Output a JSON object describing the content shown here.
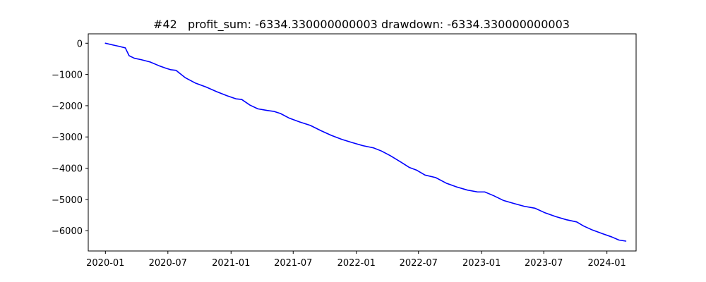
{
  "chart_data": {
    "type": "line",
    "title": "#42   profit_sum: -6334.330000000003 drawdown: -6334.330000000003",
    "xlabel": "",
    "ylabel": "",
    "x_type": "date",
    "xlim": [
      "2019-11-12",
      "2024-03-26"
    ],
    "ylim": [
      -6650,
      300
    ],
    "x_ticks": [
      "2020-01",
      "2020-07",
      "2021-01",
      "2021-07",
      "2022-01",
      "2022-07",
      "2023-01",
      "2023-07",
      "2024-01"
    ],
    "y_ticks": [
      0,
      -1000,
      -2000,
      -3000,
      -4000,
      -5000,
      -6000
    ],
    "y_tick_labels": [
      "0",
      "−1000",
      "−2000",
      "−3000",
      "−4000",
      "−5000",
      "−6000"
    ],
    "grid": false,
    "line_color": "#0000ff",
    "series": [
      {
        "x": [
          "2020-01-01",
          "2020-01-20",
          "2020-02-10",
          "2020-02-28",
          "2020-03-10",
          "2020-03-25",
          "2020-04-15",
          "2020-05-10",
          "2020-06-05",
          "2020-06-25",
          "2020-07-10",
          "2020-07-25",
          "2020-08-20",
          "2020-09-20",
          "2020-10-20",
          "2020-11-20",
          "2020-12-20",
          "2021-01-15",
          "2021-02-01",
          "2021-02-25",
          "2021-03-20",
          "2021-04-15",
          "2021-05-05",
          "2021-05-25",
          "2021-06-20",
          "2021-07-20",
          "2021-08-20",
          "2021-09-20",
          "2021-10-20",
          "2021-11-20",
          "2021-12-20",
          "2022-01-20",
          "2022-02-20",
          "2022-03-15",
          "2022-04-10",
          "2022-05-10",
          "2022-06-05",
          "2022-06-25",
          "2022-07-20",
          "2022-08-20",
          "2022-09-20",
          "2022-10-20",
          "2022-11-20",
          "2022-12-20",
          "2023-01-10",
          "2023-02-05",
          "2023-03-05",
          "2023-04-05",
          "2023-05-05",
          "2023-06-05",
          "2023-07-05",
          "2023-08-05",
          "2023-09-05",
          "2023-10-05",
          "2023-10-25",
          "2023-11-20",
          "2023-12-20",
          "2024-01-15",
          "2024-02-05",
          "2024-02-25"
        ],
        "values": [
          0,
          -50,
          -100,
          -150,
          -400,
          -480,
          -530,
          -600,
          -720,
          -800,
          -850,
          -870,
          -1100,
          -1280,
          -1400,
          -1550,
          -1680,
          -1780,
          -1800,
          -1980,
          -2100,
          -2150,
          -2180,
          -2250,
          -2400,
          -2520,
          -2630,
          -2800,
          -2950,
          -3080,
          -3180,
          -3280,
          -3350,
          -3450,
          -3600,
          -3800,
          -3980,
          -4060,
          -4220,
          -4300,
          -4480,
          -4600,
          -4700,
          -4760,
          -4760,
          -4880,
          -5030,
          -5130,
          -5220,
          -5280,
          -5430,
          -5550,
          -5650,
          -5720,
          -5850,
          -5980,
          -6100,
          -6200,
          -6300,
          -6334
        ]
      }
    ]
  }
}
